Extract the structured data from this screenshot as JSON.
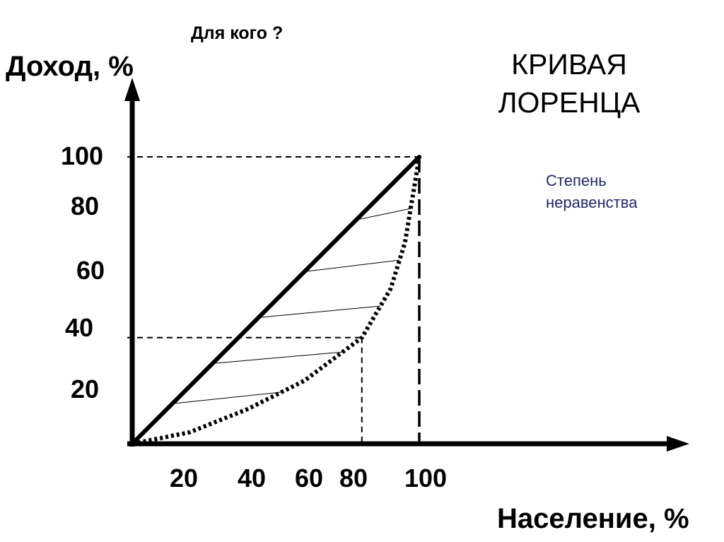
{
  "header": {
    "question": "Для кого ?"
  },
  "title_lines": [
    "КРИВАЯ",
    "ЛОРЕНЦА"
  ],
  "annotation_lines": [
    "Степень",
    "неравенства"
  ],
  "colors": {
    "axis": "#000000",
    "annotation": "#1f2a6b"
  },
  "chart_data": {
    "type": "line",
    "xlabel": "Население, %",
    "ylabel": "Доход, %",
    "xlim": [
      0,
      100
    ],
    "ylim": [
      0,
      100
    ],
    "x_ticks": [
      20,
      40,
      60,
      80,
      100
    ],
    "y_ticks": [
      20,
      40,
      60,
      80,
      100
    ],
    "grid": false,
    "series": [
      {
        "style": "solid",
        "x": [
          0,
          100
        ],
        "y": [
          0,
          100
        ]
      },
      {
        "style": "dotted",
        "x": [
          0,
          20,
          40,
          60,
          80,
          90,
          95,
          100
        ],
        "y": [
          0,
          4,
          12,
          22,
          37,
          54,
          70,
          100
        ]
      }
    ],
    "guide_lines": [
      {
        "x": 80,
        "y": 37
      },
      {
        "x": 100,
        "y": 100
      }
    ]
  }
}
